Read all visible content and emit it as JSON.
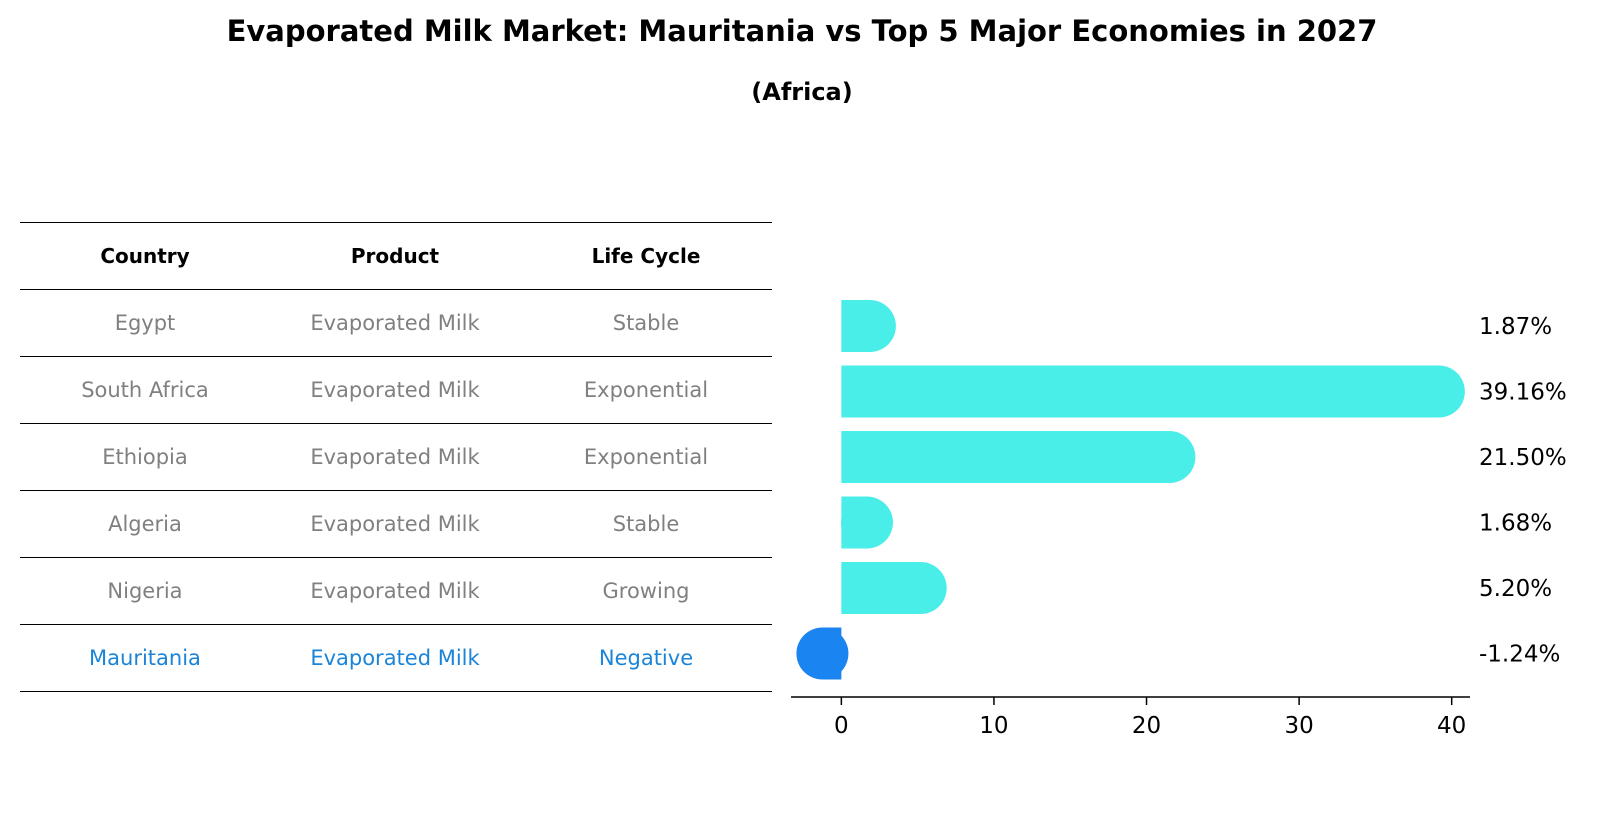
{
  "title": "Evaporated Milk Market: Mauritania vs Top 5 Major Economies in 2027",
  "subtitle": "(Africa)",
  "table": {
    "headers": [
      "Country",
      "Product",
      "Life Cycle"
    ],
    "rows": [
      [
        "Egypt",
        "Evaporated Milk",
        "Stable"
      ],
      [
        "South Africa",
        "Evaporated Milk",
        "Exponential"
      ],
      [
        "Ethiopia",
        "Evaporated Milk",
        "Exponential"
      ],
      [
        "Algeria",
        "Evaporated Milk",
        "Stable"
      ],
      [
        "Nigeria",
        "Evaporated Milk",
        "Growing"
      ],
      [
        "Mauritania",
        "Evaporated Milk",
        "Negative"
      ]
    ],
    "highlight_row": 5
  },
  "chart_data": {
    "type": "bar",
    "orientation": "horizontal",
    "categories": [
      "Egypt",
      "South Africa",
      "Ethiopia",
      "Algeria",
      "Nigeria",
      "Mauritania"
    ],
    "values": [
      1.87,
      39.16,
      21.5,
      1.68,
      5.2,
      -1.24
    ],
    "value_labels": [
      "1.87%",
      "39.16%",
      "21.50%",
      "1.68%",
      "5.20%",
      "-1.24%"
    ],
    "xlim": [
      -3.3,
      41.2
    ],
    "xticks": [
      0,
      10,
      20,
      30,
      40
    ],
    "xlabel": "",
    "ylabel": "",
    "grid": false,
    "colors": {
      "default": "#4aeee9",
      "highlight": "#1a84f0"
    },
    "highlight_index": 5
  },
  "colors": {
    "table_highlight": "#1a84d8",
    "table_text": "#808080"
  }
}
